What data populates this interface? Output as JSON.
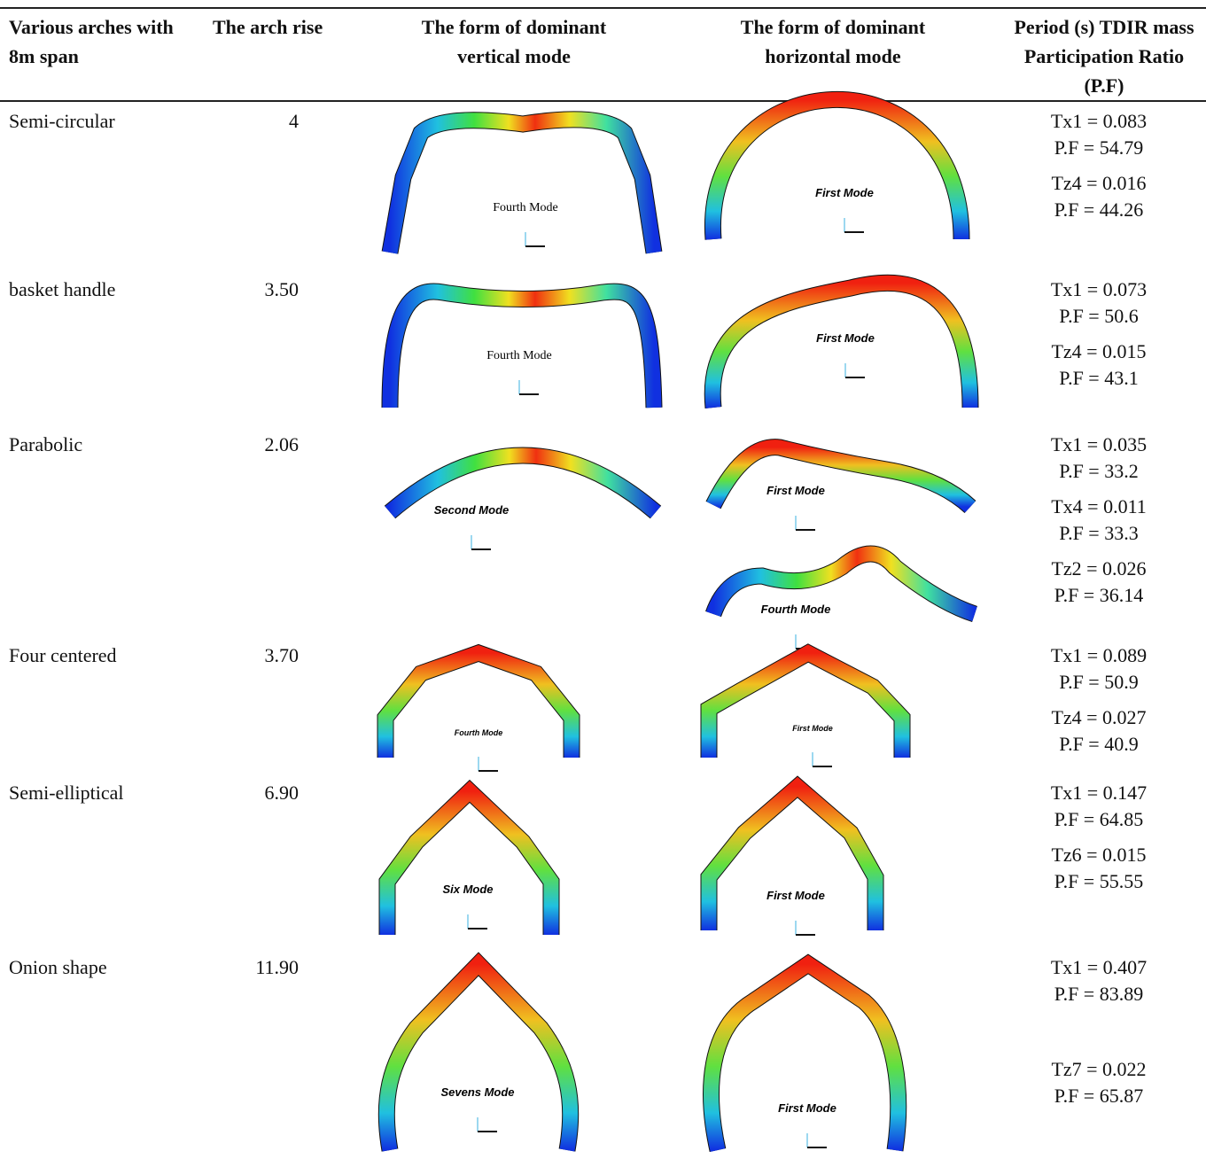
{
  "header": {
    "columns": [
      "Various arches with 8m span",
      "The arch rise",
      "The form of dominant vertical mode",
      "The form of dominant horizontal mode",
      "Period (s) TDIR mass Participation Ratio (P.F)"
    ]
  },
  "table": {
    "rows": [
      {
        "arch": "Semi-circular",
        "rise": "4",
        "vertical_modes": [
          "Fourth Mode"
        ],
        "horizontal_modes": [
          "First Mode"
        ],
        "periods": [
          {
            "period": "Tx1 = 0.083",
            "pf": "P.F = 54.79"
          },
          {
            "period": "Tz4 = 0.016",
            "pf": "P.F = 44.26"
          }
        ]
      },
      {
        "arch": "basket handle",
        "rise": "3.50",
        "vertical_modes": [
          "Fourth Mode"
        ],
        "horizontal_modes": [
          "First Mode"
        ],
        "periods": [
          {
            "period": "Tx1 = 0.073",
            "pf": "P.F = 50.6"
          },
          {
            "period": "Tz4 = 0.015",
            "pf": "P.F = 43.1"
          }
        ]
      },
      {
        "arch": "Parabolic",
        "rise": "2.06",
        "vertical_modes": [
          "Second Mode"
        ],
        "horizontal_modes": [
          "First Mode",
          "Fourth Mode"
        ],
        "periods": [
          {
            "period": "Tx1 = 0.035",
            "pf": "P.F = 33.2"
          },
          {
            "period": "Tx4 = 0.011",
            "pf": "P.F = 33.3"
          },
          {
            "period": "Tz2 = 0.026",
            "pf": "P.F = 36.14"
          }
        ]
      },
      {
        "arch": "Four centered",
        "rise": "3.70",
        "vertical_modes": [
          "Fourth Mode"
        ],
        "horizontal_modes": [
          "First Mode"
        ],
        "periods": [
          {
            "period": "Tx1 = 0.089",
            "pf": "P.F = 50.9"
          },
          {
            "period": "Tz4 = 0.027",
            "pf": "P.F = 40.9"
          }
        ]
      },
      {
        "arch": "Semi-elliptical",
        "rise": "6.90",
        "vertical_modes": [
          "Six Mode"
        ],
        "horizontal_modes": [
          "First Mode"
        ],
        "periods": [
          {
            "period": "Tx1 = 0.147",
            "pf": "P.F = 64.85"
          },
          {
            "period": "Tz6 = 0.015",
            "pf": "P.F = 55.55"
          }
        ]
      },
      {
        "arch": "Onion shape",
        "rise": "11.90",
        "vertical_modes": [
          "Sevens Mode"
        ],
        "horizontal_modes": [
          "First Mode"
        ],
        "periods": [
          {
            "period": "Tx1 = 0.407",
            "pf": "P.F = 83.89"
          },
          {
            "period": "Tz7 = 0.022",
            "pf": "P.F = 65.87"
          }
        ]
      }
    ]
  }
}
